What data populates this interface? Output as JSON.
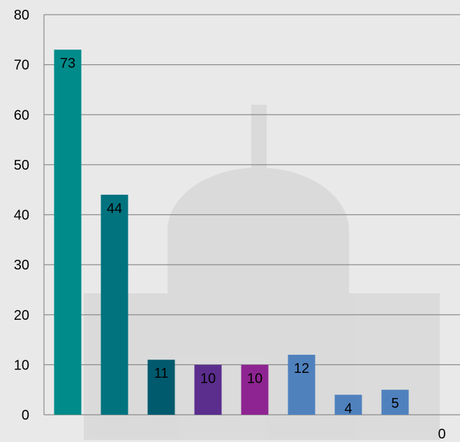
{
  "chart_data": {
    "type": "bar",
    "title": "",
    "xlabel": "",
    "ylabel": "",
    "ylim": [
      0,
      80
    ],
    "yticks": [
      0,
      10,
      20,
      30,
      40,
      50,
      60,
      70,
      80
    ],
    "grid": true,
    "legend": "none",
    "values": [
      73,
      44,
      11,
      10,
      10,
      12,
      4,
      5,
      0
    ],
    "data_labels": [
      "73",
      "44",
      "11",
      "10",
      "10",
      "12",
      "4",
      "5",
      "0"
    ],
    "colors": [
      "#008b8b",
      "#00737f",
      "#005a6e",
      "#5b2d8c",
      "#8e2491",
      "#4f81bd",
      "#4f81bd",
      "#4f81bd",
      "#4f81bd"
    ],
    "gridline_color": "#8a8a8a",
    "background_color": "#e9e9e9"
  }
}
